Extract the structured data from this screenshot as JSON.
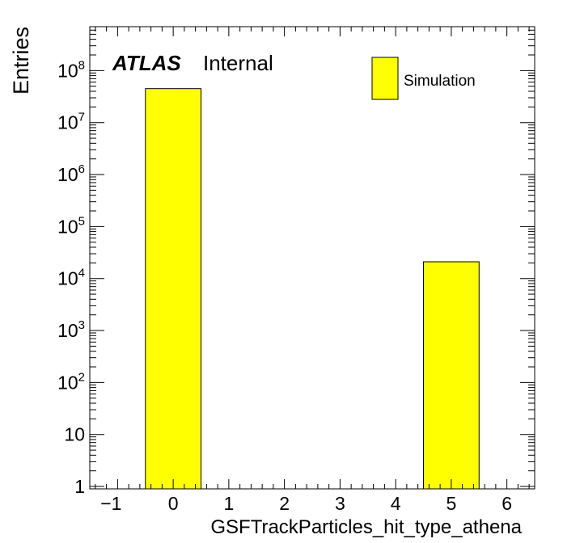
{
  "chart_data": {
    "type": "bar",
    "title": "",
    "xlabel": "GSFTrackParticles_hit_type_athena",
    "ylabel": "Entries",
    "x_ticks": [
      "−1",
      "0",
      "1",
      "2",
      "3",
      "4",
      "5",
      "6"
    ],
    "x_tick_values": [
      -1,
      0,
      1,
      2,
      3,
      4,
      5,
      6
    ],
    "y_ticks": [
      {
        "value": 1,
        "base": "1",
        "exp": ""
      },
      {
        "value": 10,
        "base": "10",
        "exp": ""
      },
      {
        "value": 100,
        "base": "10",
        "exp": "2"
      },
      {
        "value": 1000,
        "base": "10",
        "exp": "3"
      },
      {
        "value": 10000,
        "base": "10",
        "exp": "4"
      },
      {
        "value": 100000,
        "base": "10",
        "exp": "5"
      },
      {
        "value": 1000000,
        "base": "10",
        "exp": "6"
      },
      {
        "value": 10000000,
        "base": "10",
        "exp": "7"
      },
      {
        "value": 100000000,
        "base": "10",
        "exp": "8"
      }
    ],
    "xlim": [
      -1.5,
      6.5
    ],
    "ylim": [
      0.9,
      700000000
    ],
    "y_scale": "log",
    "grid": false,
    "series": [
      {
        "name": "Simulation",
        "bins": [
          {
            "x_low": -0.5,
            "x_high": 0.5,
            "value": 45000000
          },
          {
            "x_low": 4.5,
            "x_high": 5.5,
            "value": 21000
          }
        ]
      }
    ],
    "legend": {
      "position": "top-right",
      "entries": [
        "Simulation"
      ]
    },
    "annotation": {
      "atlas": "ATLAS",
      "status": "Internal"
    },
    "colors": {
      "fill": "#ffff00",
      "stroke": "#000000"
    }
  }
}
